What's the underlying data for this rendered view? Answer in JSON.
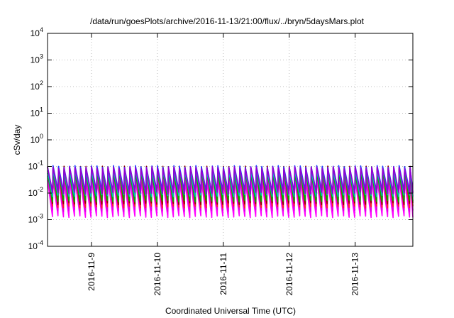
{
  "chart_data": {
    "type": "line",
    "title": "/data/run/goesPlots/archive/2016-11-13/21:00/flux/../bryn/5daysMars.plot",
    "xlabel": "Coordinated Universal Time (UTC)",
    "ylabel": "cSv/day",
    "yscale": "log",
    "ylim": [
      0.0001,
      10000
    ],
    "xlim": [
      "2016-11-08T08:00",
      "2016-11-13T21:00"
    ],
    "y_ticks": [
      {
        "base": "10",
        "exp": "-4",
        "value": 0.0001
      },
      {
        "base": "10",
        "exp": "-3",
        "value": 0.001
      },
      {
        "base": "10",
        "exp": "-2",
        "value": 0.01
      },
      {
        "base": "10",
        "exp": "-1",
        "value": 0.1
      },
      {
        "base": "10",
        "exp": "0",
        "value": 1
      },
      {
        "base": "10",
        "exp": "1",
        "value": 10
      },
      {
        "base": "10",
        "exp": "2",
        "value": 100
      },
      {
        "base": "10",
        "exp": "3",
        "value": 1000
      },
      {
        "base": "10",
        "exp": "4",
        "value": 10000
      }
    ],
    "x_ticks": [
      {
        "label": "2016-11-9",
        "value": "2016-11-09T00:00"
      },
      {
        "label": "2016-11-10",
        "value": "2016-11-10T00:00"
      },
      {
        "label": "2016-11-11",
        "value": "2016-11-11T00:00"
      },
      {
        "label": "2016-11-12",
        "value": "2016-11-12T00:00"
      },
      {
        "label": "2016-11-13",
        "value": "2016-11-13T00:00"
      }
    ],
    "grid": true,
    "legend": "none",
    "pattern": {
      "description": "sawtooth",
      "period_hours": 2,
      "peak_level": "10^-1"
    },
    "series": [
      {
        "color": "#ff00ff",
        "peak": 0.03,
        "trough": 0.0013
      },
      {
        "color": "#e000e0",
        "peak": 0.042,
        "trough": 0.0022
      },
      {
        "color": "#ff2020",
        "peak": 0.085,
        "trough": 0.003
      },
      {
        "color": "#8b0000",
        "peak": 0.095,
        "trough": 0.004
      },
      {
        "color": "#00b000",
        "peak": 0.06,
        "trough": 0.005
      },
      {
        "color": "#00c0c0",
        "peak": 0.075,
        "trough": 0.008
      },
      {
        "color": "#2040ff",
        "peak": 0.1,
        "trough": 0.012
      },
      {
        "color": "#9400d3",
        "peak": 0.09,
        "trough": 0.01
      }
    ]
  }
}
